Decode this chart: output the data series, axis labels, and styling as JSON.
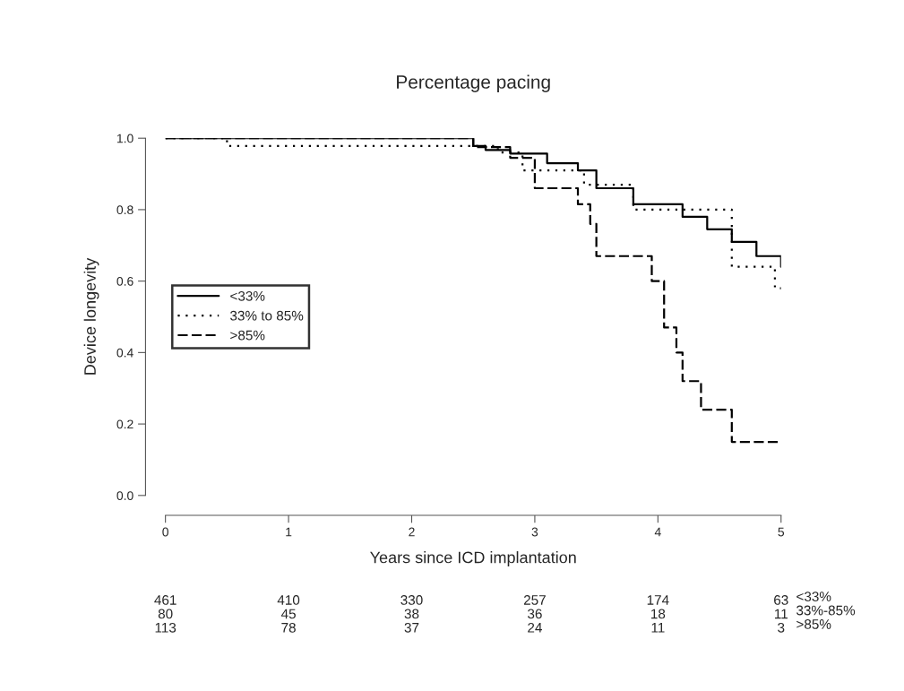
{
  "chart_data": {
    "type": "step",
    "title": "Percentage pacing",
    "xlabel": "Years since ICD implantation",
    "ylabel": "Device longevity",
    "xlim": [
      0,
      5
    ],
    "ylim": [
      0,
      1
    ],
    "xticks": [
      0,
      1,
      2,
      3,
      4,
      5
    ],
    "yticks": [
      {
        "value": 0,
        "label": "0.0"
      },
      {
        "value": 0.2,
        "label": "0.2"
      },
      {
        "value": 0.4,
        "label": "0.4"
      },
      {
        "value": 0.6,
        "label": "0.6"
      },
      {
        "value": 0.8,
        "label": "0.8"
      },
      {
        "value": 1,
        "label": "1.0"
      }
    ],
    "grid": false,
    "legend": "left",
    "marker": "none",
    "series": [
      {
        "name": "<33%",
        "color": "#000000",
        "line_style": "solid",
        "x": [
          0,
          1.5,
          2.5,
          2.6,
          2.8,
          3.1,
          3.35,
          3.5,
          3.8,
          4.2,
          4.4,
          4.6,
          4.8,
          5.0
        ],
        "values": [
          1.0,
          1.0,
          0.978,
          0.967,
          0.957,
          0.93,
          0.91,
          0.86,
          0.815,
          0.78,
          0.745,
          0.71,
          0.67,
          0.64
        ]
      },
      {
        "name": "33% to 85%",
        "color": "#000000",
        "line_style": "dotted",
        "x": [
          0,
          0.5,
          2.7,
          2.9,
          3.4,
          3.8,
          4.6,
          4.95,
          5.0
        ],
        "values": [
          1.0,
          0.978,
          0.96,
          0.91,
          0.87,
          0.8,
          0.64,
          0.58,
          0.58
        ]
      },
      {
        "name": ">85%",
        "color": "#000000",
        "line_style": "dashed",
        "x": [
          0,
          2.5,
          2.8,
          3.0,
          3.35,
          3.45,
          3.5,
          3.95,
          4.05,
          4.15,
          4.2,
          4.35,
          4.6,
          5.0
        ],
        "values": [
          1.0,
          0.975,
          0.945,
          0.86,
          0.815,
          0.76,
          0.67,
          0.6,
          0.47,
          0.4,
          0.32,
          0.24,
          0.15,
          0.15
        ]
      }
    ],
    "annotations": [
      "461",
      "410",
      "330",
      "257",
      "174",
      "63",
      "<33%",
      "80",
      "45",
      "38",
      "36",
      "18",
      "11",
      "33%-85%",
      "113",
      "78",
      "37",
      "24",
      "11",
      "3",
      ">85%"
    ]
  }
}
